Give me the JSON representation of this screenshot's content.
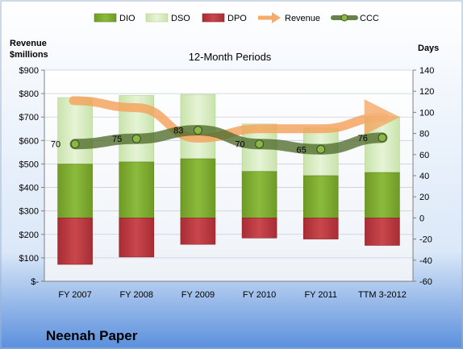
{
  "chart_data": {
    "type": "bar",
    "title": "12-Month Periods",
    "company": "Neenah Paper",
    "left_axis_title": [
      "Revenue",
      "$millions"
    ],
    "right_axis_title": "Days",
    "categories": [
      "FY 2007",
      "FY 2008",
      "FY 2009",
      "FY 2010",
      "FY 2011",
      "TTM 3-2012"
    ],
    "left_axis": {
      "min": 0,
      "max": 900,
      "step": 100,
      "tick_labels": [
        "$-",
        "$100",
        "$200",
        "$300",
        "$400",
        "$500",
        "$600",
        "$700",
        "$800",
        "$900"
      ]
    },
    "right_axis": {
      "min": -60,
      "max": 140,
      "step": 20
    },
    "legend": [
      "DIO",
      "DSO",
      "DPO",
      "Revenue",
      "CCC"
    ],
    "legend_position": "top",
    "series": [
      {
        "name": "DIO",
        "type": "bar",
        "values": [
          51,
          53,
          56,
          44,
          40,
          43
        ]
      },
      {
        "name": "DSO",
        "type": "bar",
        "values": [
          63,
          63,
          61,
          45,
          45,
          53
        ]
      },
      {
        "name": "DPO",
        "type": "bar",
        "values": [
          44,
          37,
          25,
          19,
          20,
          26
        ]
      },
      {
        "name": "Revenue",
        "type": "arrow-line",
        "values": [
          770,
          740,
          610,
          650,
          650,
          700
        ]
      },
      {
        "name": "CCC",
        "type": "line",
        "values": [
          70,
          75,
          83,
          70,
          65,
          76
        ]
      }
    ],
    "colors": {
      "DIO": "#7ea833",
      "DSO": "#d8eec1",
      "DPO": "#c0393f",
      "Revenue": "#f5a35c",
      "CCC": "#4f6b2a"
    }
  }
}
